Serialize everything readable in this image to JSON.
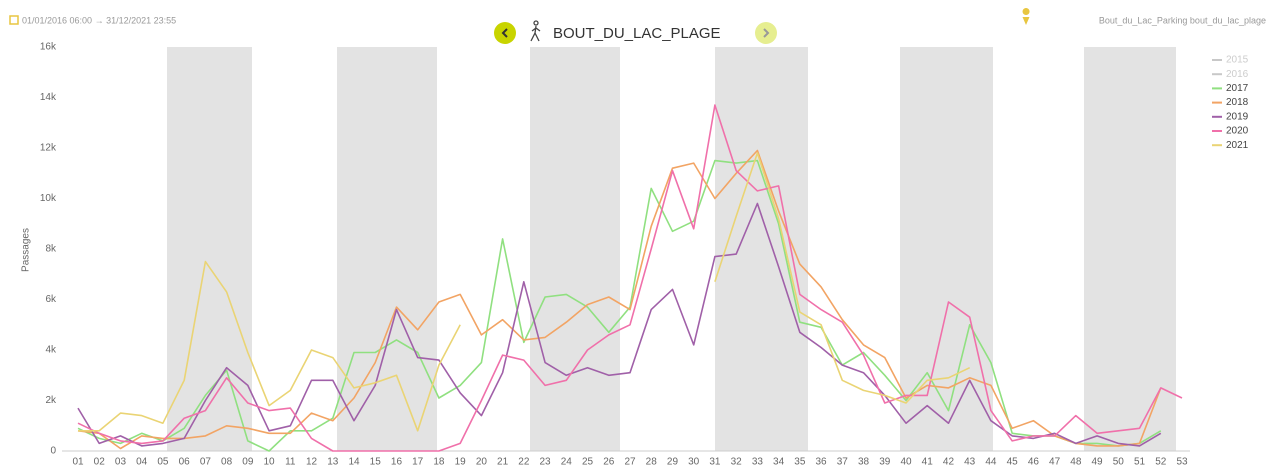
{
  "header": {
    "date_range": "01/01/2016 06:00 → 31/12/2021 23:55",
    "station": "BOUT_DU_LAC_PLAGE",
    "location": "Bout_du_Lac_Parking bout_du_lac_plage"
  },
  "chart_data": {
    "type": "line",
    "y_label": "Passages",
    "grid": false,
    "legend": "right",
    "categories": [
      "01",
      "02",
      "03",
      "04",
      "05",
      "06",
      "07",
      "08",
      "09",
      "10",
      "11",
      "12",
      "13",
      "14",
      "15",
      "16",
      "17",
      "18",
      "19",
      "20",
      "21",
      "22",
      "23",
      "24",
      "25",
      "26",
      "27",
      "28",
      "29",
      "30",
      "31",
      "32",
      "33",
      "34",
      "35",
      "36",
      "37",
      "38",
      "39",
      "40",
      "41",
      "42",
      "43",
      "44",
      "45",
      "46",
      "47",
      "48",
      "49",
      "50",
      "51",
      "52",
      "53"
    ],
    "ylim": [
      0,
      16000
    ],
    "yticks": [
      0,
      {
        "value": 2000,
        "label": "2k"
      },
      {
        "value": 4000,
        "label": "4k"
      },
      {
        "value": 6000,
        "label": "6k"
      },
      {
        "value": 8000,
        "label": "8k"
      },
      {
        "value": 10000,
        "label": "10k"
      },
      {
        "value": 12000,
        "label": "12k"
      },
      {
        "value": 14000,
        "label": "14k"
      },
      {
        "value": 16000,
        "label": "16k"
      }
    ],
    "series": [
      {
        "name": "2015",
        "color": "#c8c8c8",
        "values": [
          null,
          null,
          null,
          null,
          null,
          null,
          null,
          null,
          null,
          null,
          null,
          null,
          null,
          null,
          null,
          null,
          null,
          null,
          null,
          null,
          null,
          null,
          null,
          null,
          null,
          null,
          null,
          null,
          null,
          null,
          null,
          null,
          null,
          null,
          null,
          null,
          null,
          null,
          null,
          null,
          null,
          null,
          null,
          null,
          null,
          null,
          null,
          null,
          null,
          null,
          null,
          null,
          null
        ]
      },
      {
        "name": "2016",
        "color": "#c8c8c8",
        "values": [
          null,
          null,
          null,
          null,
          null,
          null,
          null,
          null,
          null,
          null,
          null,
          null,
          null,
          null,
          null,
          null,
          null,
          null,
          null,
          null,
          null,
          null,
          null,
          null,
          null,
          null,
          null,
          null,
          null,
          null,
          null,
          null,
          null,
          null,
          null,
          null,
          null,
          null,
          null,
          null,
          null,
          null,
          null,
          null,
          null,
          null,
          null,
          null,
          null,
          null,
          null,
          null,
          null
        ]
      },
      {
        "name": "2017",
        "color": "#90e080",
        "values": [
          900,
          500,
          300,
          700,
          400,
          900,
          2200,
          3200,
          400,
          0,
          800,
          800,
          1300,
          3900,
          3900,
          4400,
          3900,
          2100,
          2600,
          3500,
          8400,
          4300,
          6100,
          6200,
          5700,
          4700,
          5700,
          10400,
          8700,
          9100,
          11500,
          11400,
          11500,
          9000,
          5100,
          4900,
          3400,
          3900,
          3000,
          2000,
          3100,
          1600,
          5000,
          3500,
          700,
          600,
          600,
          300,
          300,
          200,
          300,
          800,
          null
        ]
      },
      {
        "name": "2018",
        "color": "#f2a464",
        "values": [
          800,
          700,
          100,
          600,
          500,
          500,
          600,
          1000,
          900,
          700,
          700,
          1500,
          1200,
          2100,
          3500,
          5700,
          4800,
          5900,
          6200,
          4600,
          5200,
          4400,
          4500,
          5100,
          5800,
          6100,
          5600,
          8900,
          11200,
          11400,
          10000,
          11000,
          11900,
          9500,
          7400,
          6500,
          5200,
          4200,
          3700,
          2100,
          2600,
          2500,
          2900,
          2600,
          900,
          1200,
          600,
          300,
          200,
          200,
          300,
          2500,
          null
        ]
      },
      {
        "name": "2019",
        "color": "#a060a8",
        "values": [
          1700,
          300,
          600,
          200,
          300,
          500,
          2000,
          3300,
          2600,
          800,
          1000,
          2800,
          2800,
          1200,
          2600,
          5600,
          3700,
          3600,
          2300,
          1400,
          3100,
          6700,
          3500,
          3000,
          3300,
          3000,
          3100,
          5600,
          6400,
          4200,
          7700,
          7800,
          9800,
          7300,
          4700,
          4100,
          3400,
          3100,
          2200,
          1100,
          1800,
          1100,
          2800,
          1200,
          600,
          500,
          700,
          300,
          600,
          300,
          200,
          700,
          null
        ]
      },
      {
        "name": "2020",
        "color": "#f070aa",
        "values": [
          1100,
          700,
          400,
          300,
          400,
          1300,
          1600,
          2900,
          1900,
          1600,
          1700,
          500,
          0,
          0,
          0,
          0,
          0,
          0,
          300,
          2000,
          3800,
          3600,
          2600,
          2800,
          4000,
          4600,
          5000,
          8000,
          11100,
          8800,
          13700,
          11100,
          10300,
          10500,
          6200,
          5600,
          5100,
          3800,
          1900,
          2200,
          2200,
          5900,
          5300,
          1600,
          400,
          600,
          600,
          1400,
          700,
          800,
          900,
          2500,
          2100
        ]
      },
      {
        "name": "2021",
        "color": "#ead474",
        "values": [
          800,
          800,
          1500,
          1400,
          1100,
          2800,
          7500,
          6300,
          3900,
          1800,
          2400,
          4000,
          3700,
          2500,
          2700,
          3000,
          800,
          3400,
          5000,
          null,
          null,
          null,
          null,
          null,
          null,
          null,
          null,
          null,
          null,
          null,
          6700,
          9300,
          11800,
          9200,
          5500,
          5000,
          2800,
          2400,
          2200,
          1900,
          2800,
          2900,
          3300,
          null,
          null,
          null,
          null,
          null,
          null,
          null,
          null,
          null,
          null
        ]
      }
    ]
  }
}
